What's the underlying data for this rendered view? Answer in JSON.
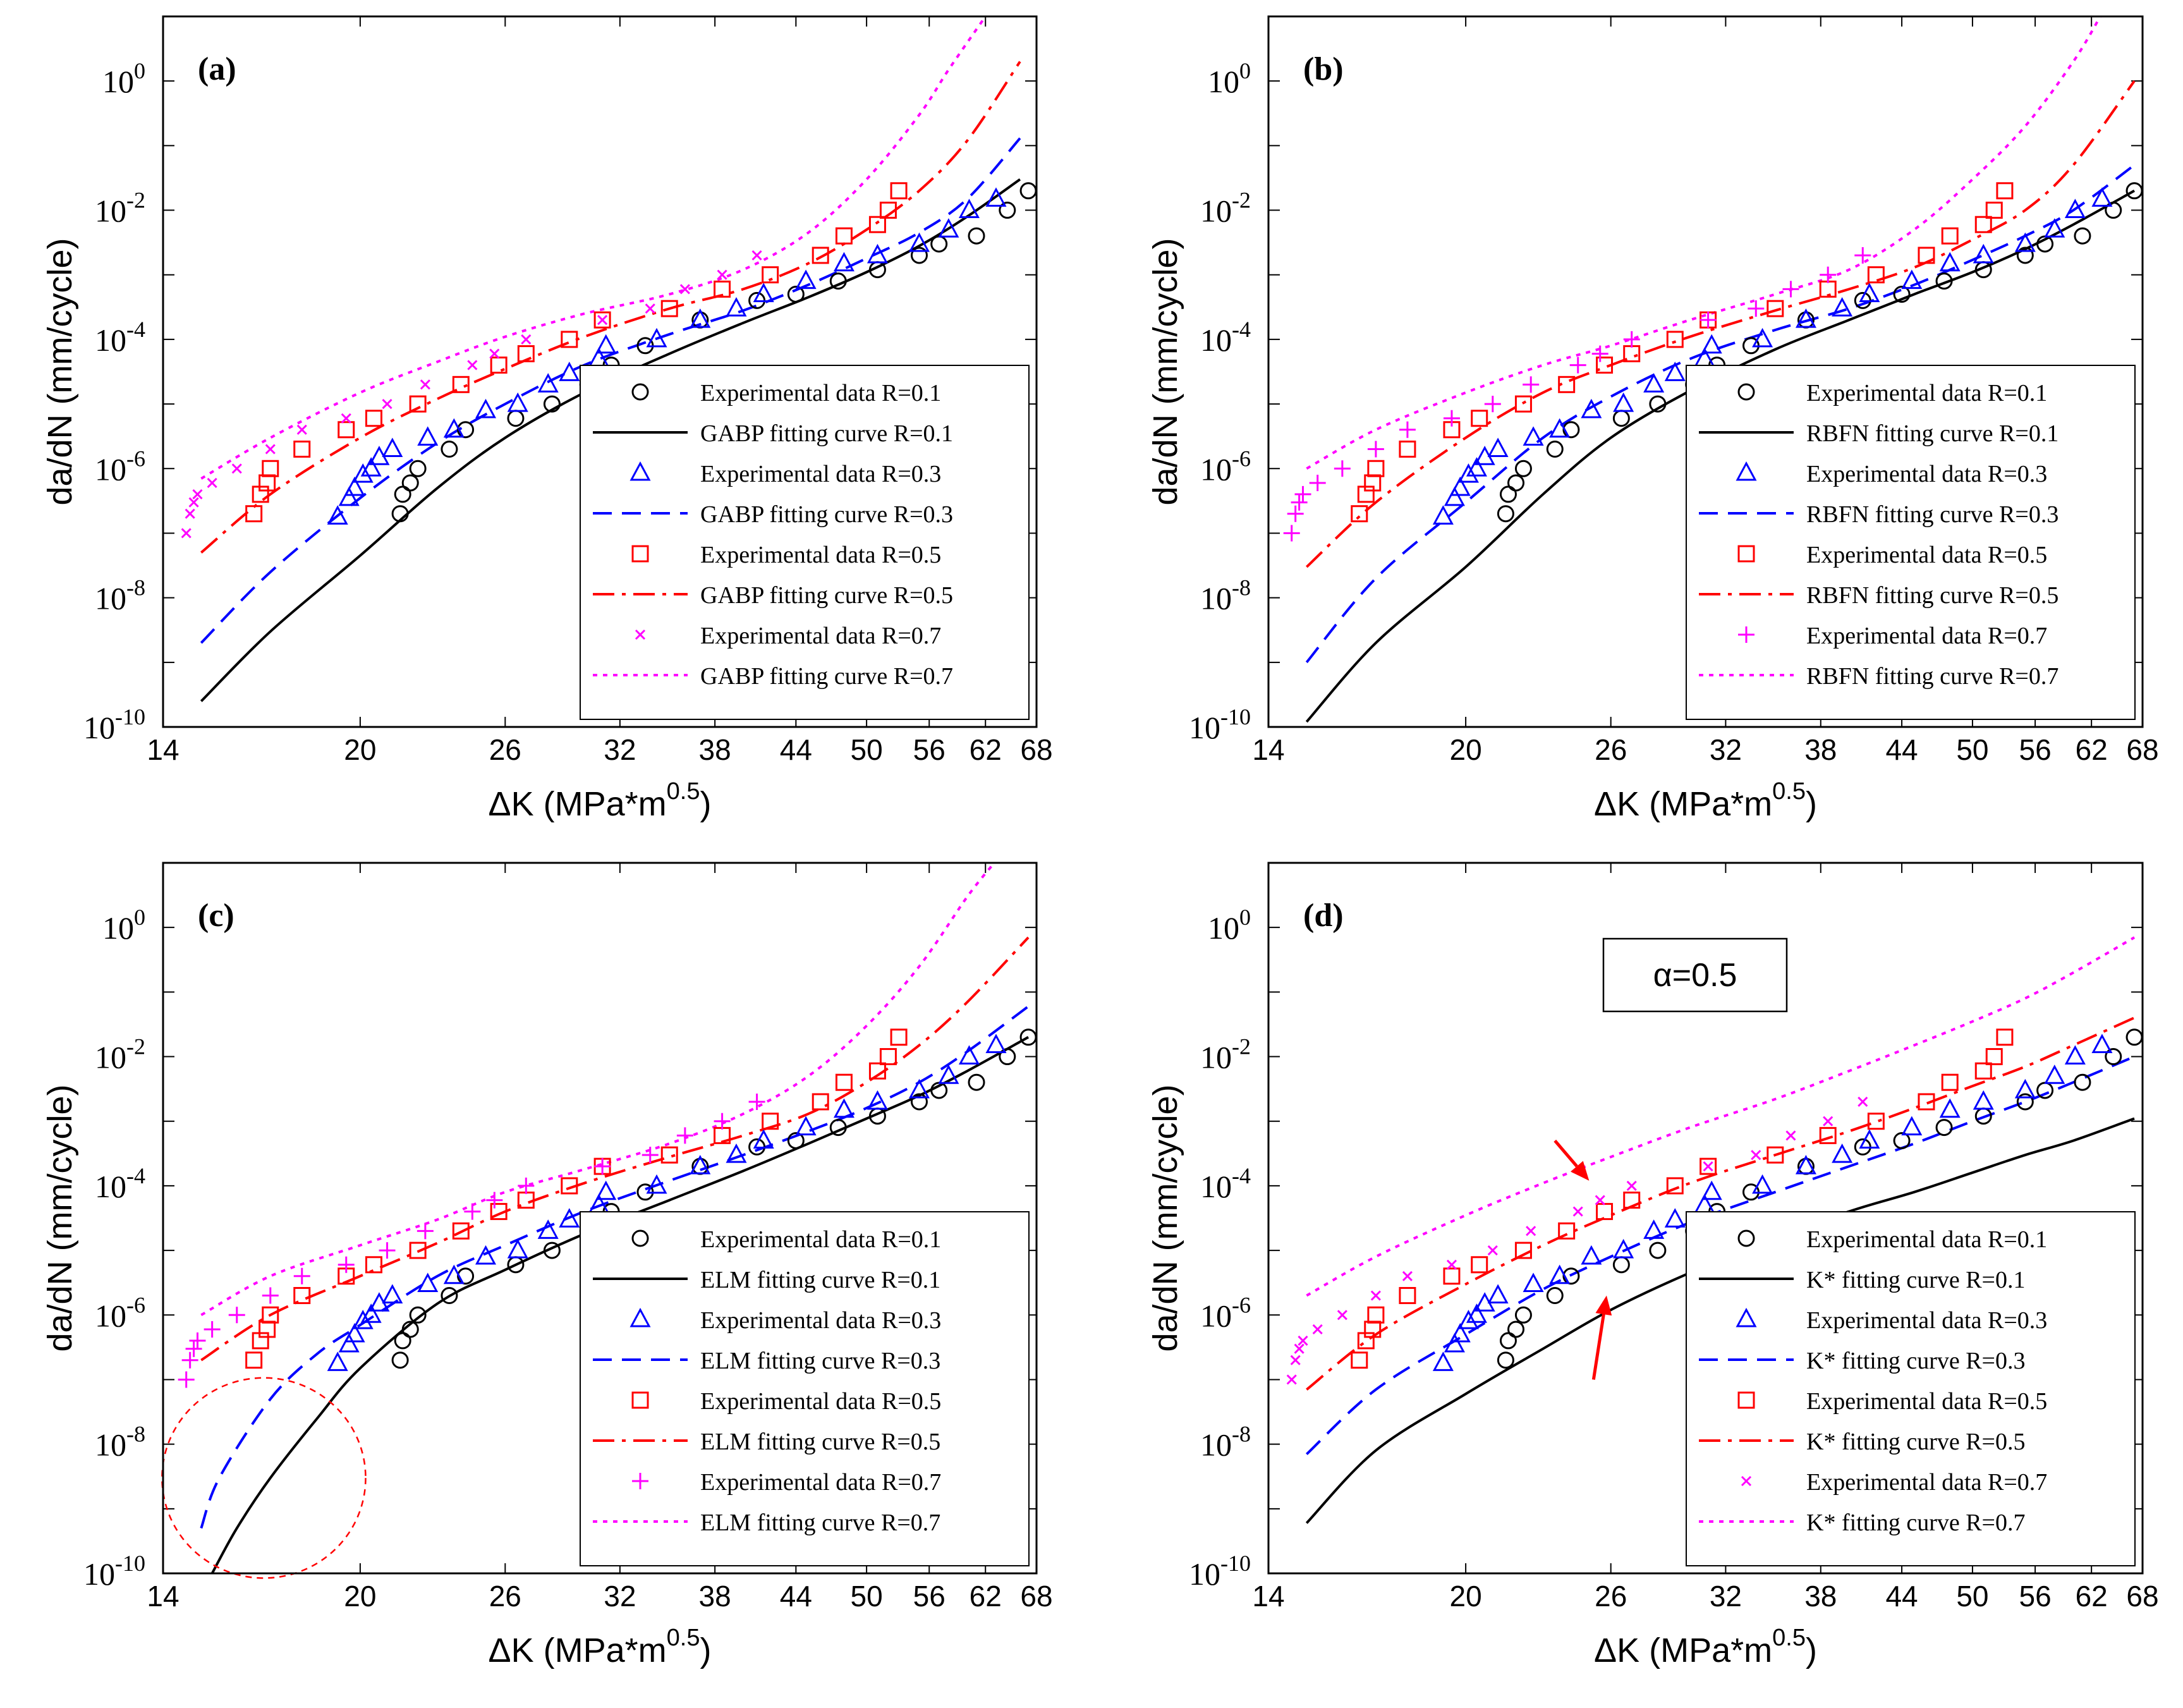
{
  "figure": {
    "layout": "2x2 grid"
  },
  "colors": {
    "R01": "#000000",
    "R03": "#0000ff",
    "R05": "#ff0000",
    "R07": "#ff00ff",
    "axis": "#000000",
    "annotation": "#ff0000"
  },
  "chart_data": [
    {
      "type": "line",
      "panel_label": "(a)",
      "method": "GABP",
      "xlabel": "ΔK (MPa*m",
      "xlabel_sup": "0.5",
      "xlabel_close": ")",
      "ylabel": "da/dN (mm/cycle)",
      "xscale": "log",
      "yscale": "log",
      "xlim": [
        14,
        68
      ],
      "ylim": [
        1e-10,
        10
      ],
      "xticks": [
        14,
        20,
        26,
        32,
        38,
        44,
        50,
        56,
        62,
        68
      ],
      "ytick_exponents": [
        -10,
        -8,
        -6,
        -4,
        -2,
        0
      ],
      "legend_location": "lower right",
      "legend": [
        "Experimental data R=0.1",
        "GABP fitting curve R=0.1",
        "Experimental data R=0.3",
        "GABP fitting curve R=0.3",
        "Experimental data R=0.5",
        "GABP fitting curve R=0.5",
        "Experimental data R=0.7",
        "GABP fitting curve R=0.7"
      ],
      "marker_07": "x",
      "curves": [
        {
          "name": "GABP fitting curve R=0.1",
          "x": [
            15,
            17,
            20,
            23,
            26,
            30,
            35,
            40,
            45,
            50,
            55,
            60,
            66
          ],
          "y": [
            2.5e-10,
            3e-09,
            4.5e-08,
            5e-07,
            3e-06,
            1.5e-05,
            6e-05,
            0.00018,
            0.00045,
            0.0011,
            0.0028,
            0.008,
            0.03
          ]
        },
        {
          "name": "GABP fitting curve R=0.3",
          "x": [
            15,
            17,
            20,
            23,
            26,
            30,
            35,
            40,
            45,
            50,
            55,
            60,
            66
          ],
          "y": [
            2e-09,
            2.5e-08,
            3.5e-07,
            2.5e-06,
            1e-05,
            4e-05,
            0.00012,
            0.00028,
            0.0007,
            0.0018,
            0.0045,
            0.015,
            0.13
          ]
        },
        {
          "name": "GABP fitting curve R=0.5",
          "x": [
            15,
            17,
            20,
            23,
            26,
            30,
            35,
            40,
            45,
            50,
            55,
            60,
            66
          ],
          "y": [
            5e-08,
            4e-07,
            3e-06,
            1.2e-05,
            3.5e-05,
            0.00011,
            0.0003,
            0.0006,
            0.0015,
            0.005,
            0.02,
            0.12,
            2
          ]
        },
        {
          "name": "GABP fitting curve R=0.7",
          "x": [
            15,
            17,
            20,
            23,
            26,
            30,
            35,
            40,
            45,
            50,
            55,
            58,
            62
          ],
          "y": [
            7e-07,
            3e-06,
            1.5e-05,
            4.5e-05,
            0.00011,
            0.00025,
            0.0005,
            0.0012,
            0.0045,
            0.03,
            0.3,
            1.5,
            10
          ]
        }
      ]
    },
    {
      "type": "line",
      "panel_label": "(b)",
      "method": "RBFN",
      "xlabel": "ΔK (MPa*m",
      "xlabel_sup": "0.5",
      "xlabel_close": ")",
      "ylabel": "da/dN (mm/cycle)",
      "xscale": "log",
      "yscale": "log",
      "xlim": [
        14,
        68
      ],
      "ylim": [
        1e-10,
        10
      ],
      "xticks": [
        14,
        20,
        26,
        32,
        38,
        44,
        50,
        56,
        62,
        68
      ],
      "ytick_exponents": [
        -10,
        -8,
        -6,
        -4,
        -2,
        0
      ],
      "legend_location": "lower right",
      "legend": [
        "Experimental data R=0.1",
        "RBFN fitting curve R=0.1",
        "Experimental data R=0.3",
        "RBFN fitting curve R=0.3",
        "Experimental data R=0.5",
        "RBFN fitting curve R=0.5",
        "Experimental data R=0.7",
        "RBFN fitting curve R=0.7"
      ],
      "marker_07": "+",
      "curves": [
        {
          "name": "RBFN fitting curve R=0.1",
          "x": [
            15,
            17,
            20,
            23,
            26,
            30,
            35,
            40,
            45,
            50,
            55,
            60,
            67
          ],
          "y": [
            1.2e-10,
            2e-09,
            3e-08,
            4e-07,
            3e-06,
            1.6e-05,
            7e-05,
            0.0002,
            0.0005,
            0.0011,
            0.0025,
            0.006,
            0.02
          ]
        },
        {
          "name": "RBFN fitting curve R=0.3",
          "x": [
            15,
            17,
            20,
            23,
            26,
            30,
            35,
            40,
            45,
            50,
            55,
            60,
            67
          ],
          "y": [
            1e-09,
            2e-08,
            3e-07,
            3e-06,
            1.3e-05,
            5e-05,
            0.00014,
            0.0003,
            0.0007,
            0.0017,
            0.004,
            0.01,
            0.05
          ]
        },
        {
          "name": "RBFN fitting curve R=0.5",
          "x": [
            15,
            17,
            20,
            23,
            26,
            30,
            35,
            40,
            45,
            50,
            55,
            60,
            67
          ],
          "y": [
            3e-08,
            3e-07,
            3e-06,
            1.5e-05,
            4e-05,
            0.00011,
            0.00028,
            0.0006,
            0.0013,
            0.0035,
            0.01,
            0.05,
            1
          ]
        },
        {
          "name": "RBFN fitting curve R=0.7",
          "x": [
            15,
            17,
            20,
            23,
            26,
            30,
            35,
            40,
            45,
            50,
            55,
            60,
            63
          ],
          "y": [
            1e-06,
            4e-06,
            1.5e-05,
            4e-05,
            8e-05,
            0.0002,
            0.0005,
            0.0012,
            0.005,
            0.03,
            0.2,
            2,
            10
          ]
        }
      ]
    },
    {
      "type": "line",
      "panel_label": "(c)",
      "method": "ELM",
      "xlabel": "ΔK (MPa*m",
      "xlabel_sup": "0.5",
      "xlabel_close": ")",
      "ylabel": "da/dN (mm/cycle)",
      "xscale": "log",
      "yscale": "log",
      "xlim": [
        14,
        68
      ],
      "ylim": [
        1e-10,
        10
      ],
      "xticks": [
        14,
        20,
        26,
        32,
        38,
        44,
        50,
        56,
        62,
        68
      ],
      "ytick_exponents": [
        -10,
        -8,
        -6,
        -4,
        -2,
        0
      ],
      "legend_location": "lower right",
      "legend": [
        "Experimental data R=0.1",
        "ELM fitting curve R=0.1",
        "Experimental data R=0.3",
        "ELM fitting curve R=0.3",
        "Experimental data R=0.5",
        "ELM fitting curve R=0.5",
        "Experimental data R=0.7",
        "ELM fitting curve R=0.7"
      ],
      "marker_07": "+",
      "circle_annotation": {
        "cx": 16.8,
        "cy": 3e-09,
        "rx_decades": 0.08,
        "ry_decades": 1.55
      },
      "curves": [
        {
          "name": "ELM fitting curve R=0.1",
          "x": [
            15.3,
            16,
            17,
            18.5,
            20,
            23,
            26,
            30,
            35,
            40,
            45,
            50,
            55,
            60,
            67
          ],
          "y": [
            1e-10,
            5e-10,
            3e-09,
            2.5e-08,
            1.5e-07,
            1.5e-06,
            5e-06,
            1.8e-05,
            6e-05,
            0.00017,
            0.00045,
            0.0011,
            0.0025,
            0.006,
            0.02
          ]
        },
        {
          "name": "ELM fitting curve R=0.3",
          "x": [
            15,
            15.5,
            17,
            18.5,
            20,
            23,
            26,
            30,
            35,
            40,
            45,
            50,
            55,
            60,
            67
          ],
          "y": [
            5e-10,
            3e-09,
            5e-08,
            2.5e-07,
            7e-07,
            4e-06,
            1.2e-05,
            4e-05,
            0.00012,
            0.0003,
            0.0007,
            0.0016,
            0.004,
            0.012,
            0.06
          ]
        },
        {
          "name": "ELM fitting curve R=0.5",
          "x": [
            15,
            17,
            20,
            23,
            26,
            30,
            35,
            40,
            45,
            50,
            55,
            60,
            67
          ],
          "y": [
            2e-07,
            1e-06,
            4e-06,
            1.3e-05,
            4e-05,
            0.00011,
            0.00028,
            0.0006,
            0.0013,
            0.004,
            0.015,
            0.07,
            0.7
          ]
        },
        {
          "name": "ELM fitting curve R=0.7",
          "x": [
            15,
            17,
            20,
            23,
            26,
            30,
            35,
            40,
            45,
            50,
            55,
            60,
            63
          ],
          "y": [
            1e-06,
            4e-06,
            1.2e-05,
            3e-05,
            8e-05,
            0.00018,
            0.00045,
            0.0013,
            0.005,
            0.03,
            0.25,
            3,
            10
          ]
        }
      ]
    },
    {
      "type": "line",
      "panel_label": "(d)",
      "method": "K*",
      "alpha_label": "α=0.5",
      "xlabel": "ΔK (MPa*m",
      "xlabel_sup": "0.5",
      "xlabel_close": ")",
      "ylabel": "da/dN (mm/cycle)",
      "xscale": "log",
      "yscale": "log",
      "xlim": [
        14,
        68
      ],
      "ylim": [
        1e-10,
        10
      ],
      "xticks": [
        14,
        20,
        26,
        32,
        38,
        44,
        50,
        56,
        62,
        68
      ],
      "ytick_exponents": [
        -10,
        -8,
        -6,
        -4,
        -2,
        0
      ],
      "legend_location": "lower right",
      "legend": [
        "Experimental data R=0.1",
        "K* fitting curve R=0.1",
        "Experimental data R=0.3",
        "K* fitting curve R=0.3",
        "Experimental data R=0.5",
        "K* fitting curve R=0.5",
        "Experimental data R=0.7",
        "K* fitting curve R=0.7"
      ],
      "marker_07": "x",
      "arrows": [
        {
          "from": [
            23.5,
            0.0005
          ],
          "to": [
            25,
            0.00012
          ]
        },
        {
          "from": [
            25.2,
            1e-07
          ],
          "to": [
            25.8,
            2e-06
          ]
        }
      ],
      "curves": [
        {
          "name": "K* fitting curve R=0.1",
          "x": [
            15,
            17,
            20,
            23,
            26,
            30,
            35,
            40,
            45,
            50,
            55,
            60,
            67
          ],
          "y": [
            6e-10,
            8e-09,
            6e-08,
            3e-07,
            1.2e-06,
            4.5e-06,
            1.5e-05,
            4e-05,
            8e-05,
            0.00016,
            0.0003,
            0.0005,
            0.0011
          ]
        },
        {
          "name": "K* fitting curve R=0.3",
          "x": [
            15,
            17,
            20,
            23,
            26,
            30,
            35,
            40,
            45,
            50,
            55,
            60,
            67
          ],
          "y": [
            7e-09,
            7e-08,
            5e-07,
            2.5e-06,
            8e-06,
            2.7e-05,
            8e-05,
            0.0002,
            0.00045,
            0.001,
            0.002,
            0.004,
            0.01
          ]
        },
        {
          "name": "K* fitting curve R=0.5",
          "x": [
            15,
            17,
            20,
            23,
            26,
            30,
            35,
            40,
            45,
            50,
            55,
            60,
            67
          ],
          "y": [
            7e-08,
            5e-07,
            3e-06,
            1.2e-05,
            3.5e-05,
            0.00011,
            0.0003,
            0.0007,
            0.0016,
            0.0035,
            0.007,
            0.015,
            0.04
          ]
        },
        {
          "name": "K* fitting curve R=0.7",
          "x": [
            15,
            17,
            20,
            23,
            26,
            30,
            35,
            40,
            45,
            50,
            55,
            60,
            67
          ],
          "y": [
            2e-06,
            8e-06,
            3.5e-05,
            0.00011,
            0.00028,
            0.0008,
            0.0022,
            0.006,
            0.015,
            0.035,
            0.08,
            0.2,
            0.7
          ]
        }
      ]
    }
  ],
  "experimental_data": {
    "R01": {
      "x": [
        21.5,
        21.6,
        21.9,
        22.2,
        23.5,
        24.2,
        26.5,
        28.3,
        30.2,
        31.5,
        33.5,
        37.0,
        41.0,
        44.0,
        47.5,
        51.0,
        55.0,
        57.0,
        61.0,
        64.5,
        67.0
      ],
      "y": [
        2e-07,
        4e-07,
        6e-07,
        1e-06,
        2e-06,
        4e-06,
        6e-06,
        1e-05,
        2e-05,
        4e-05,
        8e-05,
        0.0002,
        0.0004,
        0.0005,
        0.0008,
        0.0012,
        0.002,
        0.003,
        0.004,
        0.01,
        0.02
      ]
    },
    "R03": {
      "x": [
        19.2,
        19.6,
        19.8,
        20.1,
        20.4,
        20.7,
        21.2,
        22.6,
        23.7,
        25.1,
        26.6,
        28.1,
        29.2,
        30.8,
        31.2,
        34.2,
        37.0,
        39.5,
        41.5,
        44.8,
        48.0,
        51.0,
        55.0,
        58.0,
        60.2,
        63.2
      ],
      "y": [
        1.8e-07,
        3.5e-07,
        5e-07,
        8e-07,
        1e-06,
        1.5e-06,
        2e-06,
        3e-06,
        4e-06,
        8e-06,
        1e-05,
        2e-05,
        3e-05,
        5e-05,
        8e-05,
        0.0001,
        0.0002,
        0.0003,
        0.0005,
        0.0008,
        0.0015,
        0.002,
        0.003,
        0.005,
        0.01,
        0.015
      ]
    },
    "R05": {
      "x": [
        16.5,
        16.7,
        16.9,
        17.0,
        18.0,
        19.5,
        20.5,
        22.2,
        24.0,
        25.7,
        27.0,
        29.2,
        31.0,
        35.0,
        38.5,
        42.0,
        46.0,
        48.0,
        51.0,
        52.0,
        53.0
      ],
      "y": [
        2e-07,
        4e-07,
        6e-07,
        1e-06,
        2e-06,
        4e-06,
        6e-06,
        1e-05,
        2e-05,
        4e-05,
        6e-05,
        0.0001,
        0.0002,
        0.0003,
        0.0006,
        0.001,
        0.002,
        0.004,
        0.006,
        0.01,
        0.02
      ]
    },
    "R07": {
      "x": [
        14.6,
        14.7,
        14.8,
        14.9,
        15.3,
        16.0,
        17.0,
        18.0,
        19.5,
        21.0,
        22.5,
        24.5,
        25.5,
        27.0,
        31.0,
        33.8,
        36.0,
        38.5,
        41.0
      ],
      "y": [
        1e-07,
        2e-07,
        3e-07,
        4e-07,
        6e-07,
        1e-06,
        2e-06,
        4e-06,
        6e-06,
        1e-05,
        2e-05,
        4e-05,
        6e-05,
        0.0001,
        0.0002,
        0.0003,
        0.0006,
        0.001,
        0.002
      ]
    }
  }
}
